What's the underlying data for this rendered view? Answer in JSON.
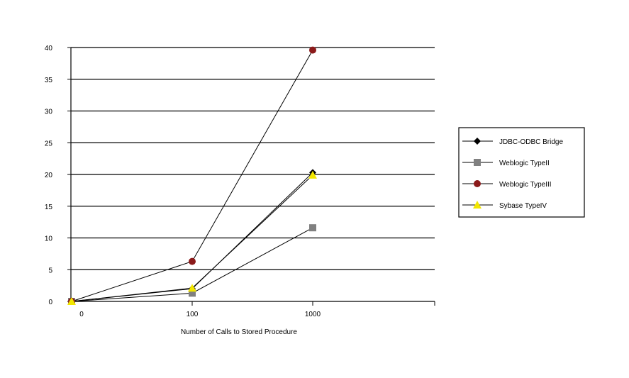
{
  "chart_data": {
    "type": "line",
    "title": "",
    "xlabel": "Number of Calls to Stored Procedure",
    "ylabel": "",
    "categories": [
      "0",
      "100",
      "1000"
    ],
    "ylim": [
      0,
      40
    ],
    "y_ticks": [
      0,
      5,
      10,
      15,
      20,
      25,
      30,
      35,
      40
    ],
    "grid": "horizontal",
    "legend_position": "right",
    "series": [
      {
        "name": "JDBC-ODBC Bridge",
        "marker": "diamond",
        "color": "#000000",
        "values": [
          0,
          2,
          20.3
        ]
      },
      {
        "name": "Weblogic TypeII",
        "marker": "square",
        "color": "#808080",
        "values": [
          0,
          1.3,
          11.6
        ]
      },
      {
        "name": "Weblogic TypeIII",
        "marker": "circle",
        "color": "#8b1a1a",
        "values": [
          0,
          6.3,
          39.6
        ]
      },
      {
        "name": "Sybase TypeIV",
        "marker": "triangle",
        "color": "#f2e600",
        "values": [
          0,
          2.1,
          19.9
        ]
      }
    ]
  }
}
